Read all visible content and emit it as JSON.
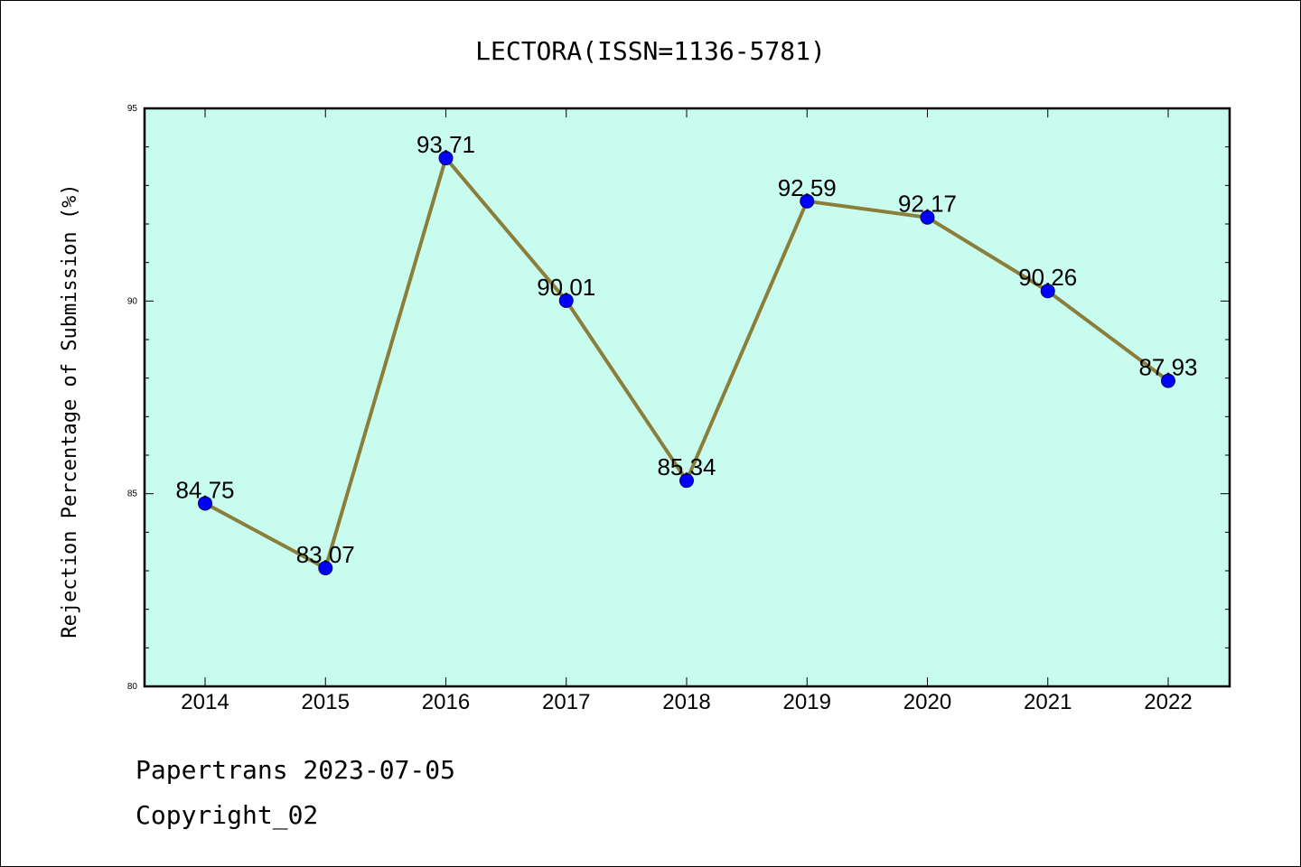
{
  "chart_data": {
    "type": "line",
    "title": "LECTORA(ISSN=1136-5781)",
    "ylabel": "Rejection Percentage of Submission (%)",
    "xlabel": "",
    "categories": [
      "2014",
      "2015",
      "2016",
      "2017",
      "2018",
      "2019",
      "2020",
      "2021",
      "2022"
    ],
    "values": [
      84.75,
      83.07,
      93.71,
      90.01,
      85.34,
      92.59,
      92.17,
      90.26,
      87.93
    ],
    "value_labels": [
      "84.75",
      "83.07",
      "93.71",
      "90.01",
      "85.34",
      "92.59",
      "92.17",
      "90.26",
      "87.93"
    ],
    "ylim": [
      80,
      95
    ],
    "yticks": [
      80,
      85,
      90,
      95
    ],
    "grid": false,
    "legend": "none",
    "colors": {
      "plot_background": "#c8fcee",
      "line": "#8b7d3a",
      "marker": "#0000ff"
    }
  },
  "footer": {
    "line1": "Papertrans 2023-07-05",
    "line2": "Copyright_02"
  }
}
